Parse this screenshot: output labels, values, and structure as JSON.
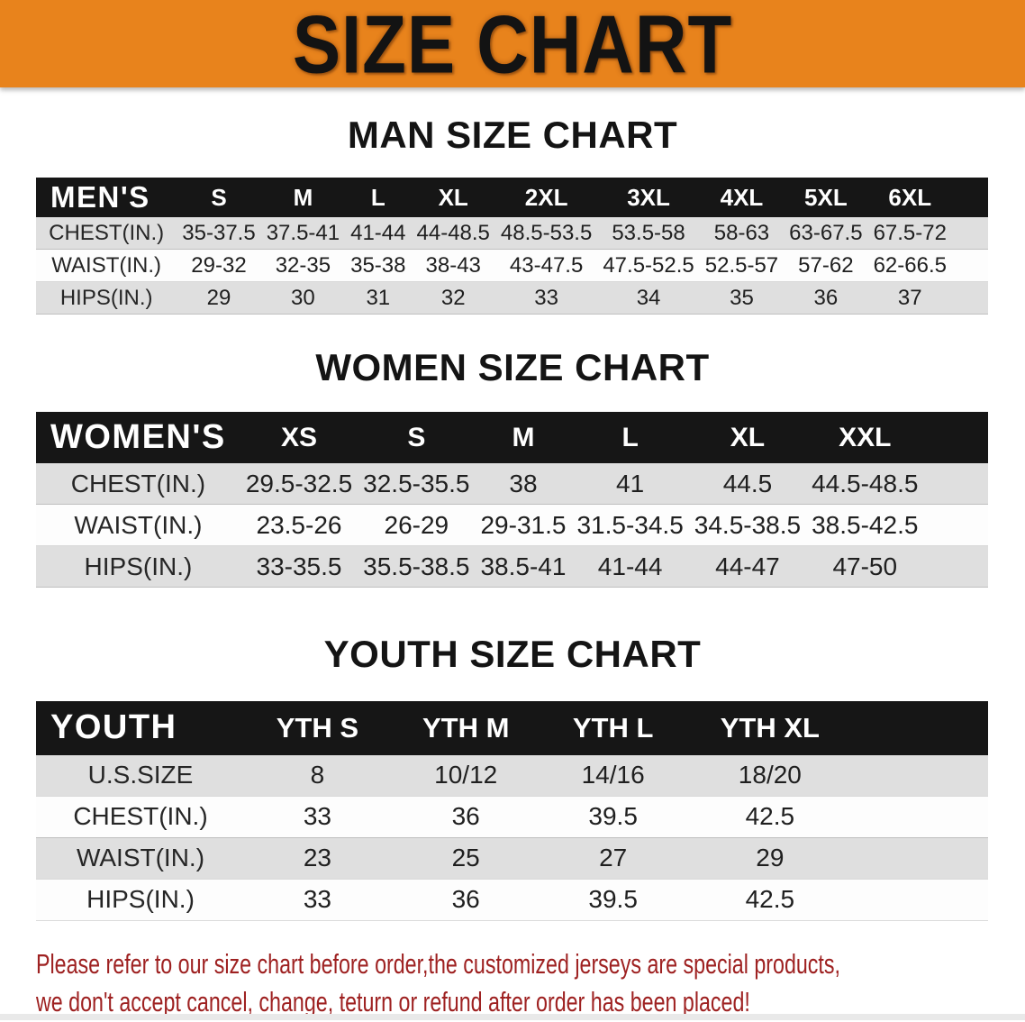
{
  "banner": {
    "title": "SIZE CHART",
    "bg_color": "#E8831C"
  },
  "colors": {
    "header_bar": "#161616",
    "row_stripe": "#DFDFDF",
    "disclaimer_text": "#9E2121"
  },
  "chart_data": {
    "tables": [
      {
        "type": "table",
        "title": "MAN SIZE CHART",
        "header_label": "MEN'S",
        "columns": [
          "S",
          "M",
          "L",
          "XL",
          "2XL",
          "3XL",
          "4XL",
          "5XL",
          "6XL"
        ],
        "rows": [
          {
            "label": "CHEST(IN.)",
            "values": [
              "35-37.5",
              "37.5-41",
              "41-44",
              "44-48.5",
              "48.5-53.5",
              "53.5-58",
              "58-63",
              "63-67.5",
              "67.5-72"
            ]
          },
          {
            "label": "WAIST(IN.)",
            "values": [
              "29-32",
              "32-35",
              "35-38",
              "38-43",
              "43-47.5",
              "47.5-52.5",
              "52.5-57",
              "57-62",
              "62-66.5"
            ]
          },
          {
            "label": "HIPS(IN.)",
            "values": [
              "29",
              "30",
              "31",
              "32",
              "33",
              "34",
              "35",
              "36",
              "37"
            ]
          }
        ]
      },
      {
        "type": "table",
        "title": "WOMEN SIZE CHART",
        "header_label": "WOMEN'S",
        "columns": [
          "XS",
          "S",
          "M",
          "L",
          "XL",
          "XXL"
        ],
        "rows": [
          {
            "label": "CHEST(IN.)",
            "values": [
              "29.5-32.5",
              "32.5-35.5",
              "38",
              "41",
              "44.5",
              "44.5-48.5"
            ]
          },
          {
            "label": "WAIST(IN.)",
            "values": [
              "23.5-26",
              "26-29",
              "29-31.5",
              "31.5-34.5",
              "34.5-38.5",
              "38.5-42.5"
            ]
          },
          {
            "label": "HIPS(IN.)",
            "values": [
              "33-35.5",
              "35.5-38.5",
              "38.5-41",
              "41-44",
              "44-47",
              "47-50"
            ]
          }
        ]
      },
      {
        "type": "table",
        "title": "YOUTH SIZE CHART",
        "header_label": "YOUTH",
        "columns": [
          "YTH S",
          "YTH M",
          "YTH L",
          "YTH XL"
        ],
        "rows": [
          {
            "label": "U.S.SIZE",
            "values": [
              "8",
              "10/12",
              "14/16",
              "18/20"
            ]
          },
          {
            "label": "CHEST(IN.)",
            "values": [
              "33",
              "36",
              "39.5",
              "42.5"
            ]
          },
          {
            "label": "WAIST(IN.)",
            "values": [
              "23",
              "25",
              "27",
              "29"
            ]
          },
          {
            "label": "HIPS(IN.)",
            "values": [
              "33",
              "36",
              "39.5",
              "42.5"
            ]
          }
        ]
      }
    ]
  },
  "disclaimer": {
    "line1": "Please refer to our size chart before order,the customized jerseys are special products,",
    "line2": "we don't accept cancel, change, teturn or refund after order has been placed!"
  }
}
